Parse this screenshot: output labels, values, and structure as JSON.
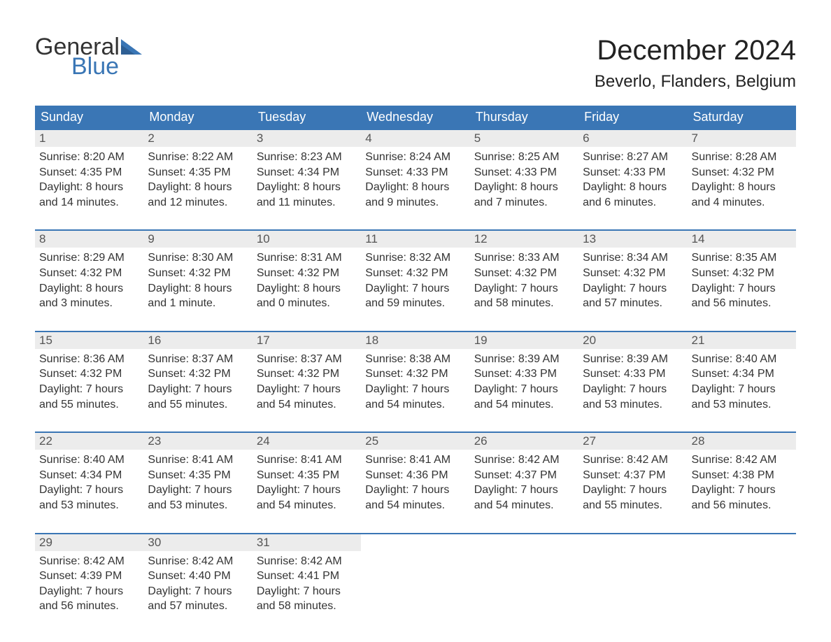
{
  "brand": {
    "word1": "General",
    "word2": "Blue",
    "flag_color": "#3a76b5"
  },
  "title": "December 2024",
  "location": "Beverlo, Flanders, Belgium",
  "colors": {
    "header_bg": "#3a76b5",
    "header_text": "#ffffff",
    "daynum_bg": "#ececec",
    "daynum_border": "#3a76b5",
    "body_text": "#333333",
    "page_bg": "#ffffff"
  },
  "typography": {
    "title_fontsize": 40,
    "location_fontsize": 24,
    "header_fontsize": 18,
    "cell_fontsize": 16
  },
  "calendar": {
    "type": "table",
    "days_of_week": [
      "Sunday",
      "Monday",
      "Tuesday",
      "Wednesday",
      "Thursday",
      "Friday",
      "Saturday"
    ],
    "weeks": [
      [
        {
          "n": "1",
          "sr": "8:20 AM",
          "ss": "4:35 PM",
          "dl": "8 hours and 14 minutes."
        },
        {
          "n": "2",
          "sr": "8:22 AM",
          "ss": "4:35 PM",
          "dl": "8 hours and 12 minutes."
        },
        {
          "n": "3",
          "sr": "8:23 AM",
          "ss": "4:34 PM",
          "dl": "8 hours and 11 minutes."
        },
        {
          "n": "4",
          "sr": "8:24 AM",
          "ss": "4:33 PM",
          "dl": "8 hours and 9 minutes."
        },
        {
          "n": "5",
          "sr": "8:25 AM",
          "ss": "4:33 PM",
          "dl": "8 hours and 7 minutes."
        },
        {
          "n": "6",
          "sr": "8:27 AM",
          "ss": "4:33 PM",
          "dl": "8 hours and 6 minutes."
        },
        {
          "n": "7",
          "sr": "8:28 AM",
          "ss": "4:32 PM",
          "dl": "8 hours and 4 minutes."
        }
      ],
      [
        {
          "n": "8",
          "sr": "8:29 AM",
          "ss": "4:32 PM",
          "dl": "8 hours and 3 minutes."
        },
        {
          "n": "9",
          "sr": "8:30 AM",
          "ss": "4:32 PM",
          "dl": "8 hours and 1 minute."
        },
        {
          "n": "10",
          "sr": "8:31 AM",
          "ss": "4:32 PM",
          "dl": "8 hours and 0 minutes."
        },
        {
          "n": "11",
          "sr": "8:32 AM",
          "ss": "4:32 PM",
          "dl": "7 hours and 59 minutes."
        },
        {
          "n": "12",
          "sr": "8:33 AM",
          "ss": "4:32 PM",
          "dl": "7 hours and 58 minutes."
        },
        {
          "n": "13",
          "sr": "8:34 AM",
          "ss": "4:32 PM",
          "dl": "7 hours and 57 minutes."
        },
        {
          "n": "14",
          "sr": "8:35 AM",
          "ss": "4:32 PM",
          "dl": "7 hours and 56 minutes."
        }
      ],
      [
        {
          "n": "15",
          "sr": "8:36 AM",
          "ss": "4:32 PM",
          "dl": "7 hours and 55 minutes."
        },
        {
          "n": "16",
          "sr": "8:37 AM",
          "ss": "4:32 PM",
          "dl": "7 hours and 55 minutes."
        },
        {
          "n": "17",
          "sr": "8:37 AM",
          "ss": "4:32 PM",
          "dl": "7 hours and 54 minutes."
        },
        {
          "n": "18",
          "sr": "8:38 AM",
          "ss": "4:32 PM",
          "dl": "7 hours and 54 minutes."
        },
        {
          "n": "19",
          "sr": "8:39 AM",
          "ss": "4:33 PM",
          "dl": "7 hours and 54 minutes."
        },
        {
          "n": "20",
          "sr": "8:39 AM",
          "ss": "4:33 PM",
          "dl": "7 hours and 53 minutes."
        },
        {
          "n": "21",
          "sr": "8:40 AM",
          "ss": "4:34 PM",
          "dl": "7 hours and 53 minutes."
        }
      ],
      [
        {
          "n": "22",
          "sr": "8:40 AM",
          "ss": "4:34 PM",
          "dl": "7 hours and 53 minutes."
        },
        {
          "n": "23",
          "sr": "8:41 AM",
          "ss": "4:35 PM",
          "dl": "7 hours and 53 minutes."
        },
        {
          "n": "24",
          "sr": "8:41 AM",
          "ss": "4:35 PM",
          "dl": "7 hours and 54 minutes."
        },
        {
          "n": "25",
          "sr": "8:41 AM",
          "ss": "4:36 PM",
          "dl": "7 hours and 54 minutes."
        },
        {
          "n": "26",
          "sr": "8:42 AM",
          "ss": "4:37 PM",
          "dl": "7 hours and 54 minutes."
        },
        {
          "n": "27",
          "sr": "8:42 AM",
          "ss": "4:37 PM",
          "dl": "7 hours and 55 minutes."
        },
        {
          "n": "28",
          "sr": "8:42 AM",
          "ss": "4:38 PM",
          "dl": "7 hours and 56 minutes."
        }
      ],
      [
        {
          "n": "29",
          "sr": "8:42 AM",
          "ss": "4:39 PM",
          "dl": "7 hours and 56 minutes."
        },
        {
          "n": "30",
          "sr": "8:42 AM",
          "ss": "4:40 PM",
          "dl": "7 hours and 57 minutes."
        },
        {
          "n": "31",
          "sr": "8:42 AM",
          "ss": "4:41 PM",
          "dl": "7 hours and 58 minutes."
        },
        null,
        null,
        null,
        null
      ]
    ],
    "labels": {
      "sunrise": "Sunrise:",
      "sunset": "Sunset:",
      "daylight": "Daylight:"
    }
  }
}
